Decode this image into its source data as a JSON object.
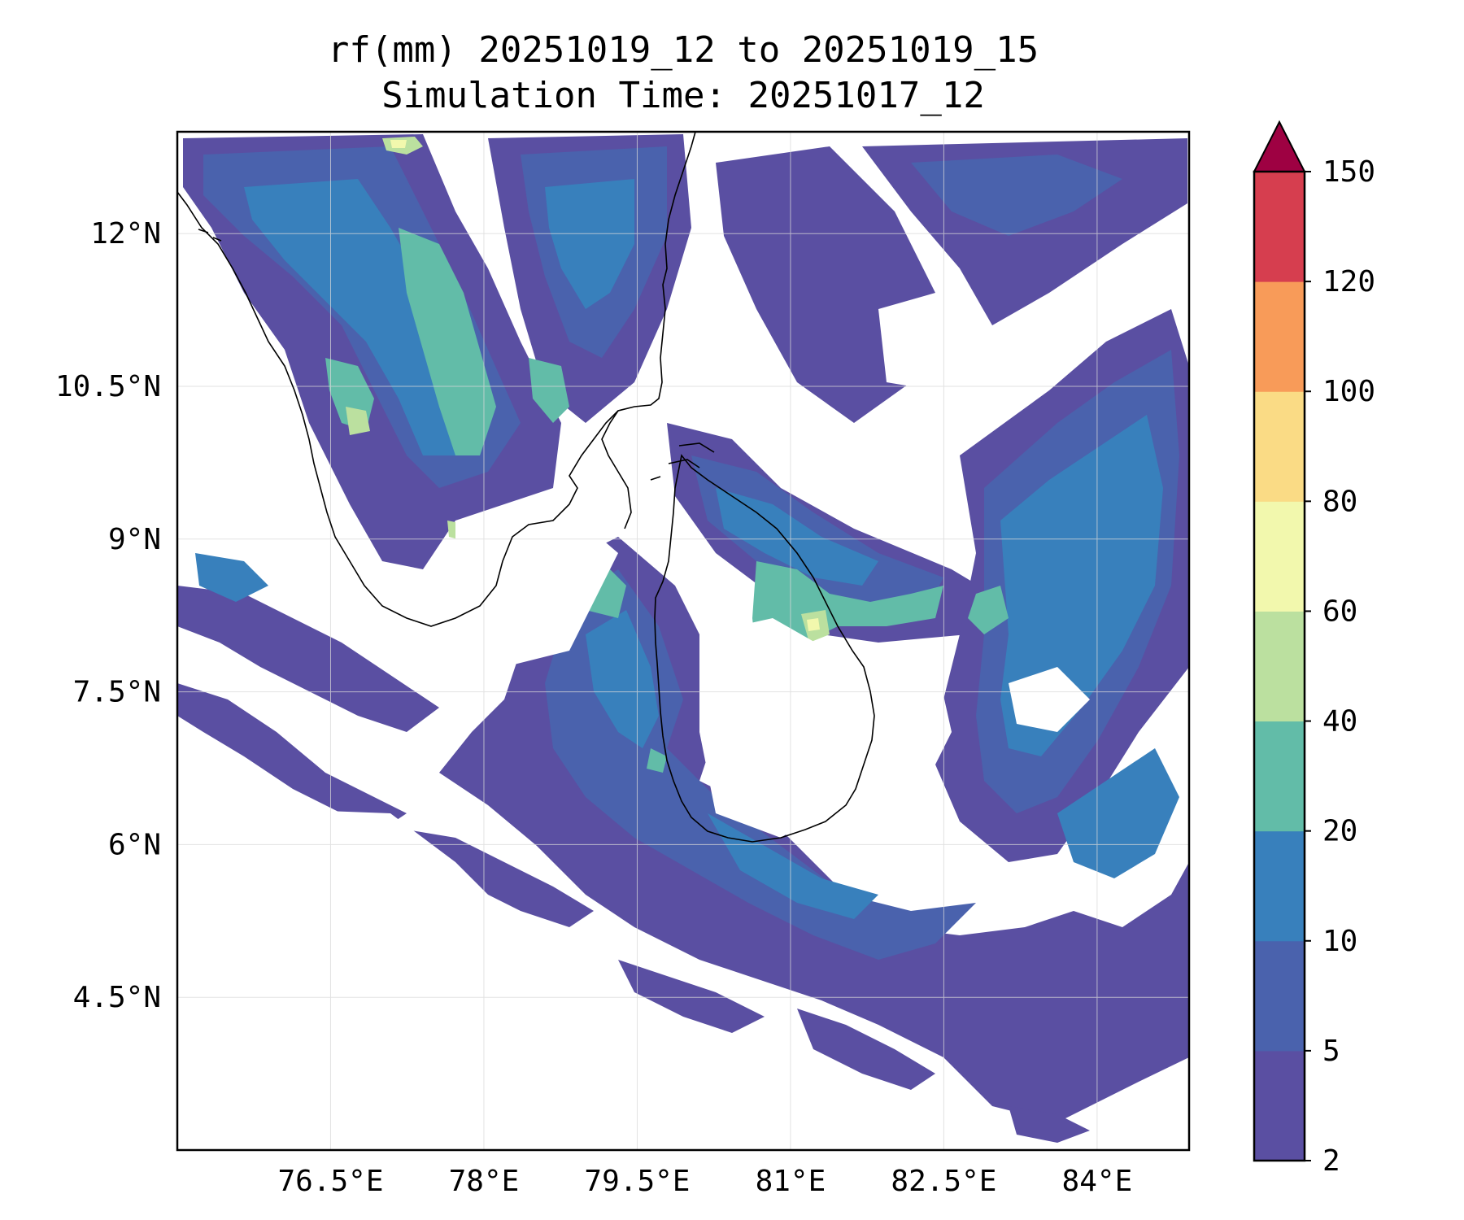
{
  "chart_data": {
    "type": "filled-contour-map",
    "title": "rf(mm) 20251019_12 to 20251019_15",
    "subtitle": "Simulation Time: 20251017_12",
    "variable": "rf(mm)",
    "x_axis": {
      "label": "",
      "ticks": [
        76.5,
        78,
        79.5,
        81,
        82.5,
        84
      ],
      "tick_labels": [
        "76.5°E",
        "78°E",
        "79.5°E",
        "81°E",
        "82.5°E",
        "84°E"
      ],
      "range": [
        75.0,
        84.9
      ]
    },
    "y_axis": {
      "label": "",
      "ticks": [
        4.5,
        6,
        7.5,
        9,
        10.5,
        12
      ],
      "tick_labels": [
        "4.5°N",
        "6°N",
        "7.5°N",
        "9°N",
        "10.5°N",
        "12°N"
      ],
      "range": [
        3.0,
        13.0
      ]
    },
    "grid": true,
    "colorbar": {
      "levels": [
        2,
        5,
        10,
        20,
        40,
        60,
        80,
        100,
        120,
        150
      ],
      "level_labels": [
        "2",
        "5",
        "10",
        "20",
        "40",
        "60",
        "80",
        "100",
        "120",
        "150"
      ],
      "colors": [
        "#5a4fa2",
        "#4a62ad",
        "#3880bc",
        "#62bca8",
        "#bbe09f",
        "#f2f8ad",
        "#fadb85",
        "#f89b59",
        "#d63e4f"
      ],
      "extend": "max",
      "extend_color": "#9e0142"
    },
    "coastline_color": "#000000"
  }
}
